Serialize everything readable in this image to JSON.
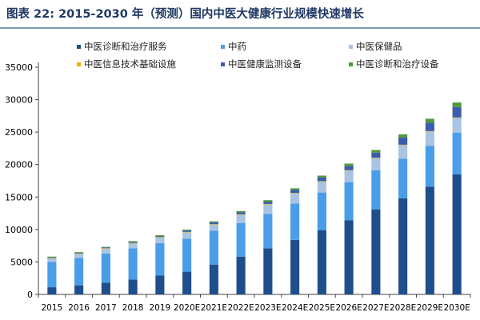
{
  "title": "图表 22: 2015-2030 年（预测）国内中医大健康行业规模快速增长",
  "chart_data": {
    "type": "bar",
    "stacked": true,
    "title": "图表 22: 2015-2030 年（预测）国内中医大健康行业规模快速增长",
    "xlabel": "",
    "ylabel": "",
    "ylim": [
      0,
      35000
    ],
    "yticks": [
      0,
      5000,
      10000,
      15000,
      20000,
      25000,
      30000,
      35000
    ],
    "grid": false,
    "legend_position": "top",
    "categories": [
      "2015",
      "2016",
      "2017",
      "2018",
      "2019",
      "2020E",
      "2021E",
      "2022E",
      "2023E",
      "2024E",
      "2025E",
      "2026E",
      "2027E",
      "2028E",
      "2029E",
      "2030E"
    ],
    "series": [
      {
        "name": "中医诊断和治疗服务",
        "color": "#1f4e8c",
        "values": [
          1100,
          1400,
          1800,
          2300,
          2900,
          3500,
          4600,
          5800,
          7100,
          8400,
          9900,
          11400,
          13100,
          14800,
          16600,
          18500
        ]
      },
      {
        "name": "中药",
        "color": "#4a9de8",
        "values": [
          3900,
          4200,
          4500,
          4800,
          5000,
          5100,
          5200,
          5200,
          5300,
          5600,
          5800,
          5900,
          6000,
          6100,
          6300,
          6400
        ]
      },
      {
        "name": "中医保健品",
        "color": "#a8c4e2",
        "values": [
          600,
          700,
          800,
          800,
          900,
          1000,
          1000,
          1300,
          1500,
          1600,
          1700,
          1800,
          1900,
          2100,
          2200,
          2300
        ]
      },
      {
        "name": "中医信息技术基础设施",
        "color": "#f0b400",
        "values": [
          20,
          20,
          20,
          30,
          30,
          30,
          30,
          40,
          40,
          40,
          50,
          50,
          50,
          60,
          60,
          60
        ]
      },
      {
        "name": "中医健康监测设备",
        "color": "#3a5dae",
        "values": [
          100,
          100,
          100,
          150,
          150,
          200,
          250,
          300,
          350,
          450,
          550,
          650,
          800,
          1100,
          1300,
          1600
        ]
      },
      {
        "name": "中医诊断和治疗设备",
        "color": "#4f9a3a",
        "values": [
          100,
          100,
          100,
          120,
          130,
          150,
          170,
          200,
          230,
          250,
          300,
          350,
          400,
          500,
          600,
          700
        ]
      }
    ]
  }
}
